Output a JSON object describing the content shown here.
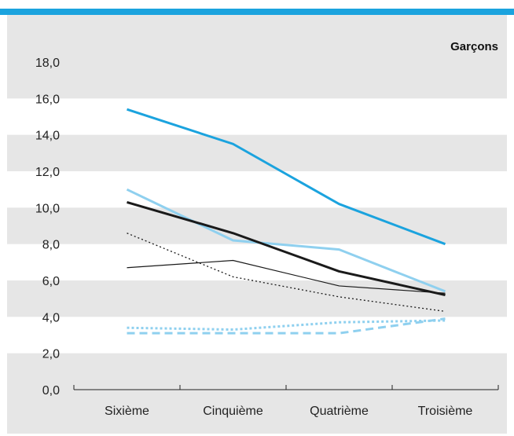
{
  "colors": {
    "top_bar": "#1ba3de",
    "panel_background": "#e6e6e6",
    "band": "#ffffff",
    "axis": "#222222"
  },
  "chart_data": {
    "type": "line",
    "title": "Garçons",
    "xlabel": "",
    "ylabel": "",
    "categories": [
      "Sixième",
      "Cinquième",
      "Quatrième",
      "Troisième"
    ],
    "ylim": [
      0,
      18
    ],
    "yticks": [
      0,
      2,
      4,
      6,
      8,
      10,
      12,
      14,
      16,
      18
    ],
    "ytick_labels": [
      "0,0",
      "2,0",
      "4,0",
      "6,0",
      "8,0",
      "10,0",
      "12,0",
      "14,0",
      "16,0",
      "18,0"
    ],
    "grid": "alternating horizontal bands",
    "legend": "none",
    "series": [
      {
        "values": [
          15.4,
          13.5,
          10.2,
          8.0
        ],
        "color": "#1ba3de",
        "style": "solid-thick"
      },
      {
        "values": [
          11.0,
          8.2,
          7.7,
          5.4
        ],
        "color": "#8fd0ef",
        "style": "solid-thick"
      },
      {
        "values": [
          10.3,
          8.6,
          6.5,
          5.2
        ],
        "color": "#1a1a1a",
        "style": "solid-thick"
      },
      {
        "values": [
          6.7,
          7.1,
          5.7,
          5.3
        ],
        "color": "#1a1a1a",
        "style": "solid-thin"
      },
      {
        "values": [
          8.6,
          6.2,
          5.1,
          4.3
        ],
        "color": "#1a1a1a",
        "style": "dotted-thin"
      },
      {
        "values": [
          3.4,
          3.3,
          3.7,
          3.8
        ],
        "color": "#8fd0ef",
        "style": "dotted-thick"
      },
      {
        "values": [
          3.1,
          3.1,
          3.1,
          3.9
        ],
        "color": "#8fd0ef",
        "style": "dashed-thick"
      }
    ]
  }
}
